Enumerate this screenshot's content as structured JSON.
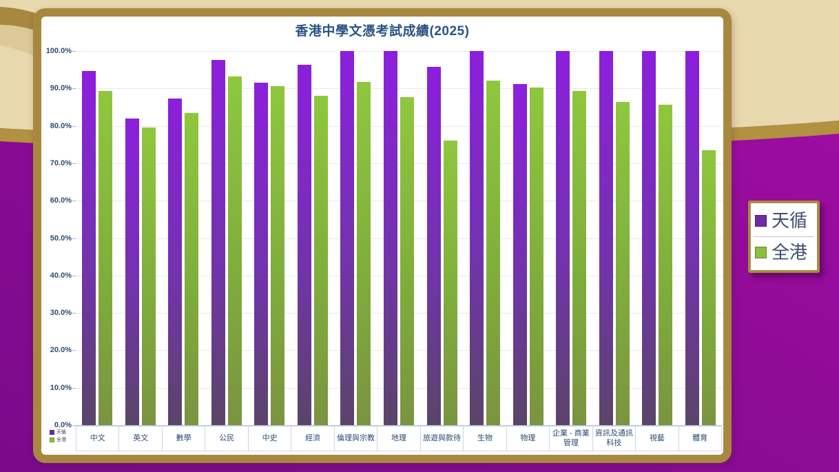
{
  "chart_data": {
    "type": "bar",
    "title": "香港中學文憑考試成績(2025)",
    "categories": [
      "中文",
      "英文",
      "數學",
      "公民",
      "中史",
      "經濟",
      "倫理與宗教",
      "地理",
      "旅遊與款待",
      "生物",
      "物理",
      "企業 - 商業管理",
      "資訊及通訊科技",
      "視藝",
      "體育"
    ],
    "series": [
      {
        "name": "天循",
        "values": [
          94.7,
          82.0,
          87.3,
          97.7,
          91.6,
          96.3,
          100.0,
          100.0,
          95.7,
          100.0,
          91.2,
          100.0,
          100.0,
          100.0,
          100.0
        ],
        "gradient": [
          "#8c1fdd",
          "#7233ad",
          "#5a4568"
        ]
      },
      {
        "name": "全港",
        "values": [
          89.3,
          79.5,
          83.4,
          93.1,
          90.7,
          88.0,
          91.8,
          87.6,
          76.1,
          92.0,
          90.3,
          89.3,
          86.4,
          85.6,
          73.4
        ],
        "gradient": [
          "#8fc73e",
          "#7fae3c",
          "#7a9440"
        ]
      }
    ],
    "ylim": [
      0,
      100
    ],
    "yticks": [
      "0.0%",
      "10.0%",
      "20.0%",
      "30.0%",
      "40.0%",
      "50.0%",
      "60.0%",
      "70.0%",
      "80.0%",
      "90.0%",
      "100.0%"
    ],
    "grid": true,
    "legend_position": "right-outside"
  },
  "legend": {
    "items": [
      {
        "label": "天循",
        "color": "#6e2ba6"
      },
      {
        "label": "全港",
        "color": "#8cbd3e"
      }
    ]
  },
  "colors": {
    "panel_border": "#a8873e",
    "background_tan": "#e8d8ad",
    "background_band": "#b29140",
    "background_purple_light": "#a20da6",
    "background_purple_dark": "#7a0a8a",
    "title_text": "#2b5386",
    "axis_text": "#2c4a73",
    "gridline": "#e4eaf4"
  }
}
